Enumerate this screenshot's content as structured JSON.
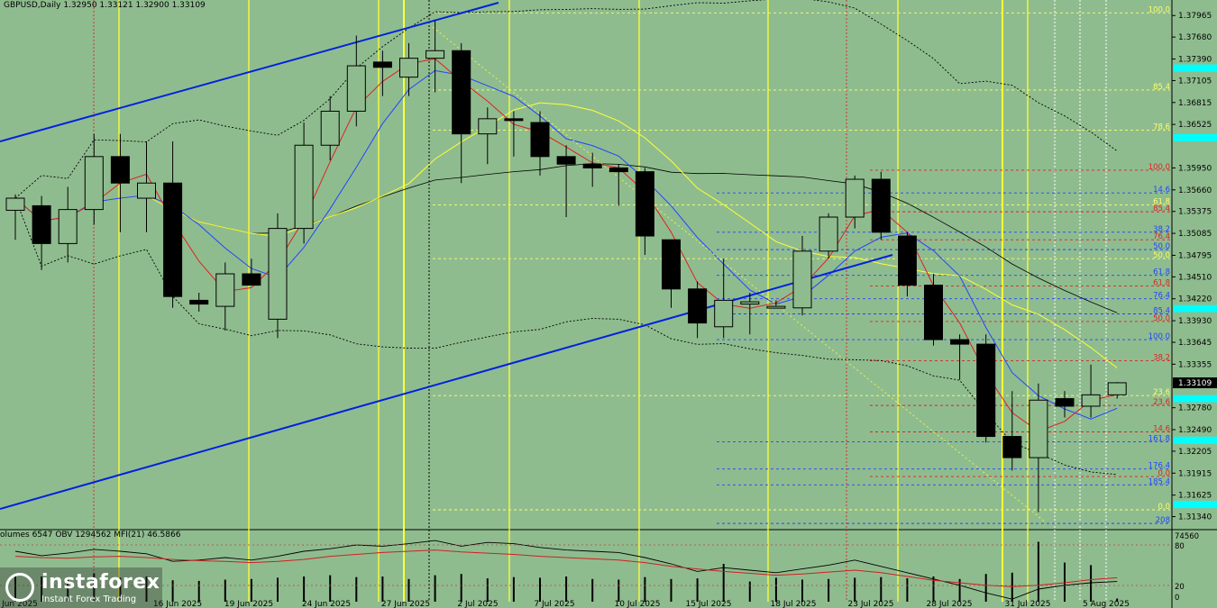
{
  "header": {
    "symbol": "GBPUSD,Daily",
    "ohlc": "1.32950 1.33121 1.32900 1.33109"
  },
  "indicator_header": "olumes 6547  OBV 1294562  MFI(21) 46.5866",
  "logo": {
    "brand": "instaforex",
    "tagline": "Instant Forex Trading"
  },
  "colors": {
    "background": "#8fbc8f",
    "bull_candle": "#8fbc8f",
    "bear_candle": "#000000",
    "channel": "#0022dd",
    "fib_yellow": "#ffff66",
    "fib_blue": "#2244ff",
    "fib_red": "#dd2222",
    "cyan_marker": "#00ffff"
  },
  "chart_data": {
    "type": "candlestick",
    "price_axis": {
      "range": [
        1.3118,
        1.3817
      ],
      "ticks": [
        "1.37965",
        "1.37680",
        "1.37390",
        "1.37105",
        "1.36815",
        "1.36525",
        "1.35950",
        "1.35660",
        "1.35375",
        "1.35085",
        "1.34795",
        "1.34510",
        "1.34220",
        "1.33930",
        "1.33645",
        "1.33355",
        "1.32780",
        "1.32490",
        "1.32205",
        "1.31915",
        "1.31625",
        "1.31340"
      ],
      "current_price": "1.33109"
    },
    "date_labels": [
      "Jun 2025",
      "16 Jun 2025",
      "19 Jun 2025",
      "24 Jun 2025",
      "27 Jun 2025",
      "2 Jul 2025",
      "7 Jul 2025",
      "10 Jul 2025",
      "15 Jul 2025",
      "18 Jul 2025",
      "23 Jul 2025",
      "28 Jul 2025",
      "31 Jul 2025",
      "5 Aug 2025"
    ],
    "candles": [
      {
        "o": 1.3539,
        "h": 1.356,
        "l": 1.35,
        "c": 1.3555
      },
      {
        "o": 1.3545,
        "h": 1.3558,
        "l": 1.346,
        "c": 1.3495
      },
      {
        "o": 1.3495,
        "h": 1.357,
        "l": 1.347,
        "c": 1.354
      },
      {
        "o": 1.354,
        "h": 1.364,
        "l": 1.352,
        "c": 1.361
      },
      {
        "o": 1.361,
        "h": 1.364,
        "l": 1.351,
        "c": 1.3575
      },
      {
        "o": 1.3555,
        "h": 1.363,
        "l": 1.351,
        "c": 1.3575
      },
      {
        "o": 1.3575,
        "h": 1.363,
        "l": 1.341,
        "c": 1.3425
      },
      {
        "o": 1.342,
        "h": 1.343,
        "l": 1.3405,
        "c": 1.3415
      },
      {
        "o": 1.3412,
        "h": 1.347,
        "l": 1.338,
        "c": 1.3455
      },
      {
        "o": 1.3455,
        "h": 1.3475,
        "l": 1.3445,
        "c": 1.344
      },
      {
        "o": 1.3395,
        "h": 1.3535,
        "l": 1.337,
        "c": 1.3515
      },
      {
        "o": 1.3515,
        "h": 1.3655,
        "l": 1.3495,
        "c": 1.3625
      },
      {
        "o": 1.3625,
        "h": 1.369,
        "l": 1.3605,
        "c": 1.367
      },
      {
        "o": 1.367,
        "h": 1.377,
        "l": 1.365,
        "c": 1.373
      },
      {
        "o": 1.3735,
        "h": 1.375,
        "l": 1.369,
        "c": 1.3728
      },
      {
        "o": 1.3715,
        "h": 1.376,
        "l": 1.369,
        "c": 1.374
      },
      {
        "o": 1.374,
        "h": 1.379,
        "l": 1.3695,
        "c": 1.375
      },
      {
        "o": 1.375,
        "h": 1.376,
        "l": 1.3575,
        "c": 1.364
      },
      {
        "o": 1.364,
        "h": 1.3675,
        "l": 1.36,
        "c": 1.366
      },
      {
        "o": 1.366,
        "h": 1.367,
        "l": 1.361,
        "c": 1.3658
      },
      {
        "o": 1.3655,
        "h": 1.367,
        "l": 1.3585,
        "c": 1.361
      },
      {
        "o": 1.361,
        "h": 1.3625,
        "l": 1.353,
        "c": 1.36
      },
      {
        "o": 1.36,
        "h": 1.3615,
        "l": 1.357,
        "c": 1.3595
      },
      {
        "o": 1.3595,
        "h": 1.36,
        "l": 1.3545,
        "c": 1.359
      },
      {
        "o": 1.359,
        "h": 1.3595,
        "l": 1.348,
        "c": 1.3505
      },
      {
        "o": 1.35,
        "h": 1.35,
        "l": 1.341,
        "c": 1.3435
      },
      {
        "o": 1.3435,
        "h": 1.3445,
        "l": 1.337,
        "c": 1.339
      },
      {
        "o": 1.3385,
        "h": 1.3475,
        "l": 1.337,
        "c": 1.342
      },
      {
        "o": 1.3415,
        "h": 1.343,
        "l": 1.3375,
        "c": 1.3418
      },
      {
        "o": 1.341,
        "h": 1.342,
        "l": 1.341,
        "c": 1.3412
      },
      {
        "o": 1.341,
        "h": 1.3505,
        "l": 1.34,
        "c": 1.3485
      },
      {
        "o": 1.3485,
        "h": 1.3535,
        "l": 1.3475,
        "c": 1.353
      },
      {
        "o": 1.353,
        "h": 1.3585,
        "l": 1.3515,
        "c": 1.358
      },
      {
        "o": 1.358,
        "h": 1.359,
        "l": 1.35,
        "c": 1.351
      },
      {
        "o": 1.3505,
        "h": 1.351,
        "l": 1.3425,
        "c": 1.344
      },
      {
        "o": 1.344,
        "h": 1.3455,
        "l": 1.336,
        "c": 1.3368
      },
      {
        "o": 1.3368,
        "h": 1.3375,
        "l": 1.3315,
        "c": 1.3362
      },
      {
        "o": 1.3362,
        "h": 1.3375,
        "l": 1.3232,
        "c": 1.324
      },
      {
        "o": 1.324,
        "h": 1.33,
        "l": 1.3195,
        "c": 1.3212
      },
      {
        "o": 1.3212,
        "h": 1.331,
        "l": 1.314,
        "c": 1.3288
      },
      {
        "o": 1.329,
        "h": 1.33,
        "l": 1.3265,
        "c": 1.328
      },
      {
        "o": 1.328,
        "h": 1.3335,
        "l": 1.3265,
        "c": 1.3295
      },
      {
        "o": 1.3295,
        "h": 1.3312,
        "l": 1.329,
        "c": 1.3311
      }
    ],
    "fib_labels": [
      {
        "text": "100.0",
        "price": 1.38,
        "color": "yellow"
      },
      {
        "text": "85.4",
        "price": 1.3698,
        "color": "yellow"
      },
      {
        "text": "78.6",
        "price": 1.3645,
        "color": "yellow"
      },
      {
        "text": "100.0",
        "price": 1.3592,
        "color": "red"
      },
      {
        "text": "14.6",
        "price": 1.3562,
        "color": "blue"
      },
      {
        "text": "61.8",
        "price": 1.3546,
        "color": "yellow"
      },
      {
        "text": "85.4",
        "price": 1.3537,
        "color": "red"
      },
      {
        "text": "38.2",
        "price": 1.351,
        "color": "blue"
      },
      {
        "text": "76.4",
        "price": 1.35,
        "color": "red"
      },
      {
        "text": "50.0",
        "price": 1.3487,
        "color": "blue"
      },
      {
        "text": "50.0",
        "price": 1.3475,
        "color": "yellow"
      },
      {
        "text": "61.8",
        "price": 1.3453,
        "color": "blue"
      },
      {
        "text": "61.8",
        "price": 1.3439,
        "color": "red"
      },
      {
        "text": "76.4",
        "price": 1.3422,
        "color": "blue"
      },
      {
        "text": "85.4",
        "price": 1.3402,
        "color": "blue"
      },
      {
        "text": "50.0",
        "price": 1.3392,
        "color": "red"
      },
      {
        "text": "100.0",
        "price": 1.3368,
        "color": "blue"
      },
      {
        "text": "38.2",
        "price": 1.334,
        "color": "red"
      },
      {
        "text": "23.6",
        "price": 1.3294,
        "color": "yellow"
      },
      {
        "text": "23.6",
        "price": 1.3281,
        "color": "red"
      },
      {
        "text": "14.6",
        "price": 1.3246,
        "color": "red"
      },
      {
        "text": "161.8",
        "price": 1.3233,
        "color": "blue"
      },
      {
        "text": "176.4",
        "price": 1.3197,
        "color": "blue"
      },
      {
        "text": "0.0",
        "price": 1.3187,
        "color": "red"
      },
      {
        "text": "185.4",
        "price": 1.3176,
        "color": "blue"
      },
      {
        "text": "0.0",
        "price": 1.3143,
        "color": "yellow"
      },
      {
        "text": "208",
        "price": 1.3125,
        "color": "blue"
      }
    ],
    "cyan_markers": [
      1.3727,
      1.3635,
      1.3409,
      1.329,
      1.3235,
      1.315
    ],
    "indicator": {
      "scale_labels": [
        "74560",
        "80",
        "20",
        "0"
      ],
      "volumes": [
        0.42,
        0.4,
        0.35,
        0.45,
        0.38,
        0.4,
        0.34,
        0.33,
        0.35,
        0.36,
        0.38,
        0.4,
        0.42,
        0.39,
        0.4,
        0.36,
        0.42,
        0.44,
        0.37,
        0.39,
        0.38,
        0.4,
        0.36,
        0.35,
        0.39,
        0.36,
        0.37,
        0.6,
        0.32,
        0.38,
        0.35,
        0.36,
        0.38,
        0.39,
        0.37,
        0.4,
        0.36,
        0.44,
        0.46,
        0.95,
        0.62,
        0.58,
        0.05
      ],
      "obv": [
        0.8,
        0.73,
        0.77,
        0.83,
        0.8,
        0.76,
        0.64,
        0.66,
        0.7,
        0.66,
        0.72,
        0.8,
        0.84,
        0.9,
        0.88,
        0.92,
        0.97,
        0.88,
        0.94,
        0.92,
        0.86,
        0.82,
        0.8,
        0.78,
        0.7,
        0.6,
        0.48,
        0.54,
        0.5,
        0.46,
        0.52,
        0.58,
        0.66,
        0.56,
        0.46,
        0.36,
        0.26,
        0.14,
        0.04,
        0.2,
        0.26,
        0.3,
        0.32
      ],
      "mfi": [
        0.72,
        0.7,
        0.69,
        0.71,
        0.72,
        0.7,
        0.67,
        0.65,
        0.64,
        0.62,
        0.64,
        0.67,
        0.72,
        0.75,
        0.78,
        0.8,
        0.82,
        0.79,
        0.77,
        0.75,
        0.72,
        0.7,
        0.68,
        0.66,
        0.62,
        0.56,
        0.52,
        0.48,
        0.45,
        0.42,
        0.44,
        0.47,
        0.5,
        0.46,
        0.4,
        0.34,
        0.3,
        0.26,
        0.24,
        0.26,
        0.3,
        0.35,
        0.38
      ]
    }
  }
}
